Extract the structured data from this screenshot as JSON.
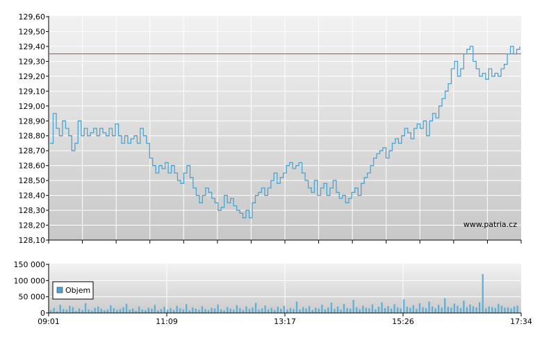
{
  "watermark": "www.patria.cz",
  "colors": {
    "price_line": "#4aa3d0",
    "reference_line": "#d04030",
    "volume_bars": "#5ab0d8",
    "grid": "#ffffff"
  },
  "chart_data": [
    {
      "type": "line",
      "title": "",
      "ylim": [
        128.1,
        129.6
      ],
      "yticks": [
        "129,60",
        "129,50",
        "129,40",
        "129,30",
        "129,20",
        "129,10",
        "129,00",
        "128,90",
        "128,80",
        "128,70",
        "128,60",
        "128,50",
        "128,40",
        "128,30",
        "128,20",
        "128,10"
      ],
      "reference_value": 129.35,
      "grid": true,
      "series": [
        {
          "values": [
            128.75,
            128.95,
            128.85,
            128.8,
            128.9,
            128.85,
            128.8,
            128.7,
            128.75,
            128.9,
            128.8,
            128.85,
            128.8,
            128.82,
            128.85,
            128.8,
            128.85,
            128.82,
            128.8,
            128.85,
            128.8,
            128.88,
            128.8,
            128.75,
            128.8,
            128.75,
            128.78,
            128.8,
            128.75,
            128.85,
            128.8,
            128.75,
            128.65,
            128.6,
            128.55,
            128.6,
            128.58,
            128.62,
            128.55,
            128.6,
            128.55,
            128.5,
            128.48,
            128.55,
            128.6,
            128.52,
            128.45,
            128.4,
            128.35,
            128.4,
            128.45,
            128.42,
            128.38,
            128.35,
            128.3,
            128.32,
            128.4,
            128.35,
            128.38,
            128.33,
            128.3,
            128.28,
            128.25,
            128.3,
            128.25,
            128.35,
            128.4,
            128.42,
            128.45,
            128.4,
            128.45,
            128.5,
            128.55,
            128.48,
            128.52,
            128.55,
            128.6,
            128.62,
            128.58,
            128.6,
            128.62,
            128.55,
            128.5,
            128.45,
            128.42,
            128.5,
            128.4,
            128.45,
            128.48,
            128.4,
            128.45,
            128.5,
            128.42,
            128.38,
            128.4,
            128.35,
            128.38,
            128.42,
            128.45,
            128.4,
            128.48,
            128.52,
            128.55,
            128.6,
            128.65,
            128.68,
            128.7,
            128.72,
            128.65,
            128.7,
            128.75,
            128.78,
            128.75,
            128.8,
            128.85,
            128.82,
            128.78,
            128.85,
            128.88,
            128.85,
            128.9,
            128.8,
            128.9,
            128.95,
            128.92,
            129.0,
            129.05,
            129.1,
            129.15,
            129.25,
            129.3,
            129.2,
            129.25,
            129.35,
            129.38,
            129.4,
            129.3,
            129.25,
            129.2,
            129.22,
            129.18,
            129.25,
            129.2,
            129.22,
            129.2,
            129.25,
            129.28,
            129.35,
            129.4,
            129.35,
            129.38,
            129.4
          ]
        }
      ]
    },
    {
      "type": "bar",
      "title": "",
      "ylim": [
        0,
        150000
      ],
      "yticks": [
        "150 000",
        "100 000",
        "50 000",
        "0"
      ],
      "xticks": [
        "09:01",
        "11:09",
        "13:17",
        "15:26",
        "17:34"
      ],
      "legend": "Objem",
      "legend_placement": "bottom-left",
      "values": [
        8000,
        15000,
        5000,
        25000,
        12000,
        10000,
        22000,
        18000,
        6000,
        14000,
        9000,
        30000,
        11000,
        7000,
        16000,
        20000,
        13000,
        8000,
        10000,
        24000,
        15000,
        9000,
        12000,
        18000,
        28000,
        10000,
        14000,
        7000,
        20000,
        11000,
        9000,
        16000,
        13000,
        25000,
        8000,
        12000,
        19000,
        10000,
        15000,
        9000,
        22000,
        14000,
        11000,
        27000,
        8000,
        17000,
        13000,
        10000,
        21000,
        12000,
        9000,
        16000,
        14000,
        26000,
        11000,
        8000,
        18000,
        13000,
        10000,
        24000,
        15000,
        9000,
        20000,
        12000,
        17000,
        31000,
        10000,
        14000,
        23000,
        11000,
        16000,
        9000,
        19000,
        13000,
        22000,
        10000,
        15000,
        12000,
        35000,
        11000,
        18000,
        14000,
        21000,
        9000,
        16000,
        13000,
        25000,
        11000,
        17000,
        32000,
        12000,
        20000,
        10000,
        28000,
        15000,
        13000,
        40000,
        18000,
        12000,
        22000,
        16000,
        14000,
        26000,
        11000,
        19000,
        33000,
        15000,
        21000,
        13000,
        27000,
        17000,
        14000,
        42000,
        19000,
        16000,
        24000,
        13000,
        30000,
        18000,
        15000,
        35000,
        20000,
        14000,
        25000,
        17000,
        45000,
        19000,
        16000,
        29000,
        22000,
        15000,
        38000,
        18000,
        26000,
        21000,
        17000,
        33000,
        120000,
        14000,
        20000,
        18000,
        15000,
        28000,
        22000,
        16000,
        17000,
        14000,
        20000,
        23000
      ]
    }
  ]
}
